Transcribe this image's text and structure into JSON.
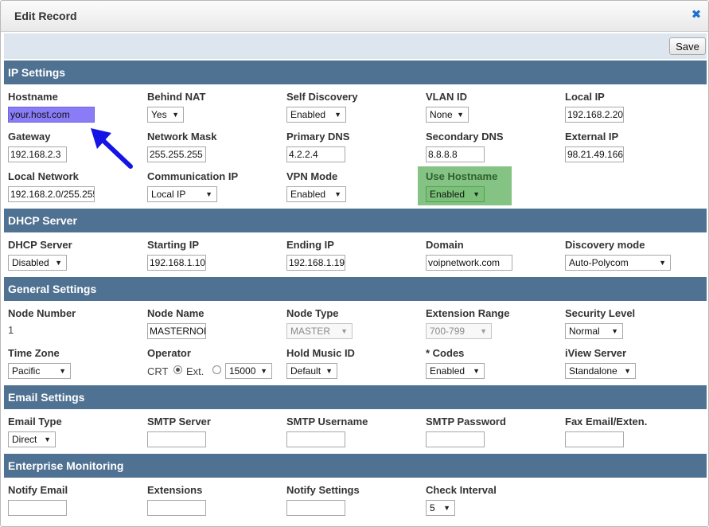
{
  "dialog": {
    "title": "Edit Record",
    "close_glyph": "✖",
    "save_label": "Save"
  },
  "sections": {
    "ip": "IP Settings",
    "dhcp": "DHCP Server",
    "general": "General Settings",
    "email": "Email Settings",
    "enterprise": "Enterprise Monitoring"
  },
  "ip": {
    "hostname": {
      "label": "Hostname",
      "value": "your.host.com"
    },
    "behind_nat": {
      "label": "Behind NAT",
      "value": "Yes"
    },
    "self_discovery": {
      "label": "Self Discovery",
      "value": "Enabled"
    },
    "vlan_id": {
      "label": "VLAN ID",
      "value": "None"
    },
    "local_ip": {
      "label": "Local IP",
      "value": "192.168.2.20"
    },
    "gateway": {
      "label": "Gateway",
      "value": "192.168.2.3"
    },
    "network_mask": {
      "label": "Network Mask",
      "value": "255.255.255"
    },
    "primary_dns": {
      "label": "Primary DNS",
      "value": "4.2.2.4"
    },
    "secondary_dns": {
      "label": "Secondary DNS",
      "value": "8.8.8.8"
    },
    "external_ip": {
      "label": "External IP",
      "value": "98.21.49.166"
    },
    "local_network": {
      "label": "Local Network",
      "value": "192.168.2.0/255.255"
    },
    "communication_ip": {
      "label": "Communication IP",
      "value": "Local IP"
    },
    "vpn_mode": {
      "label": "VPN Mode",
      "value": "Enabled"
    },
    "use_hostname": {
      "label": "Use Hostname",
      "value": "Enabled"
    }
  },
  "dhcp": {
    "dhcp_server": {
      "label": "DHCP Server",
      "value": "Disabled"
    },
    "starting_ip": {
      "label": "Starting IP",
      "value": "192.168.1.10"
    },
    "ending_ip": {
      "label": "Ending IP",
      "value": "192.168.1.19"
    },
    "domain": {
      "label": "Domain",
      "value": "voipnetwork.com"
    },
    "discovery_mode": {
      "label": "Discovery mode",
      "value": "Auto-Polycom"
    }
  },
  "general": {
    "node_number": {
      "label": "Node Number",
      "value": "1"
    },
    "node_name": {
      "label": "Node Name",
      "value": "MASTERNODE"
    },
    "node_type": {
      "label": "Node Type",
      "value": "MASTER"
    },
    "extension_range": {
      "label": "Extension Range",
      "value": "700-799"
    },
    "security_level": {
      "label": "Security Level",
      "value": "Normal"
    },
    "time_zone": {
      "label": "Time Zone",
      "value": "Pacific"
    },
    "operator": {
      "label": "Operator",
      "crt_label": "CRT",
      "ext_label": "Ext.",
      "ext_value": "15000"
    },
    "hold_music_id": {
      "label": "Hold Music ID",
      "value": "Default"
    },
    "codes": {
      "label": "* Codes",
      "value": "Enabled"
    },
    "iview_server": {
      "label": "iView Server",
      "value": "Standalone"
    }
  },
  "email": {
    "email_type": {
      "label": "Email Type",
      "value": "Direct"
    },
    "smtp_server": {
      "label": "SMTP Server",
      "value": ""
    },
    "smtp_username": {
      "label": "SMTP Username",
      "value": ""
    },
    "smtp_password": {
      "label": "SMTP Password",
      "value": ""
    },
    "fax_email": {
      "label": "Fax Email/Exten.",
      "value": ""
    }
  },
  "enterprise": {
    "notify_email": {
      "label": "Notify Email",
      "value": ""
    },
    "extensions": {
      "label": "Extensions",
      "value": ""
    },
    "notify_settings": {
      "label": "Notify Settings",
      "value": ""
    },
    "check_interval": {
      "label": "Check Interval",
      "value": "5"
    }
  },
  "annotation": {
    "arrow_color": "#1414e6",
    "highlight_color": "#84c383"
  },
  "icons": {
    "dropdown": "▼"
  }
}
